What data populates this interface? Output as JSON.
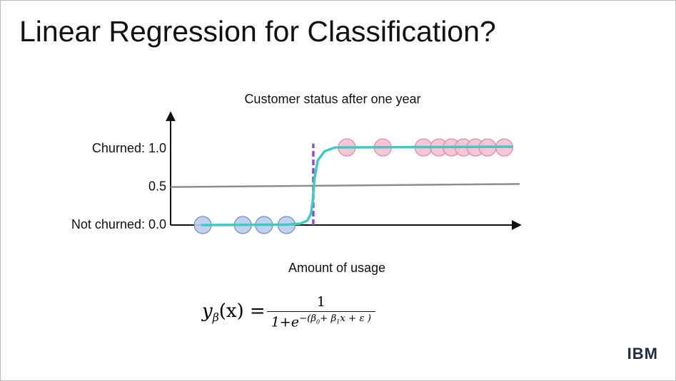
{
  "header": {
    "title": "Linear Regression for Classification?"
  },
  "chart_data": {
    "type": "scatter",
    "title": "Customer status after one year",
    "x_label": "Amount of usage",
    "xlim": [
      0,
      10.2
    ],
    "ylim": [
      0,
      1.47
    ],
    "yticks": [
      {
        "value": 1,
        "label": "Churned: 1.0"
      },
      {
        "value": 0.5,
        "label": "0.5"
      },
      {
        "value": 0,
        "label": "Not churned: 0.0"
      }
    ],
    "series": [
      {
        "color": "#b9cdee",
        "x": [
          0.94,
          2.11,
          2.73,
          3.39
        ],
        "values": [
          0,
          0,
          0,
          0
        ]
      },
      {
        "color": "#f6c1d3",
        "x": [
          5.15,
          6.2,
          7.39,
          7.84,
          8.21,
          8.56,
          8.91,
          9.26,
          9.75
        ],
        "values": [
          1.02,
          1.02,
          1.02,
          1.02,
          1.02,
          1.02,
          1.02,
          1.02,
          1.02
        ]
      }
    ],
    "curve": {
      "color": "#3ccbc4",
      "x": [
        0.9,
        3.4,
        3.8,
        4.0,
        4.1,
        4.15,
        4.2,
        4.3,
        4.5,
        4.8,
        10.0
      ],
      "values": [
        0,
        0.005,
        0.02,
        0.06,
        0.15,
        0.3,
        0.6,
        0.85,
        0.97,
        1.02,
        1.03
      ]
    },
    "threshold": {
      "color": "#8c8c8c",
      "x": [
        0,
        10.2
      ],
      "values": [
        0.5,
        0.54
      ]
    },
    "boundary": {
      "color": "#8a4fe0",
      "x": 4.17
    }
  },
  "formula": {
    "lhs": "y",
    "lhs_sub": "β",
    "lhs_rest": "(x) =",
    "numerator": "1",
    "denominator": "1+e",
    "exponent": [
      "−(β",
      "0",
      "+ β",
      "1",
      "x + ε )"
    ]
  },
  "logo": "IBM"
}
